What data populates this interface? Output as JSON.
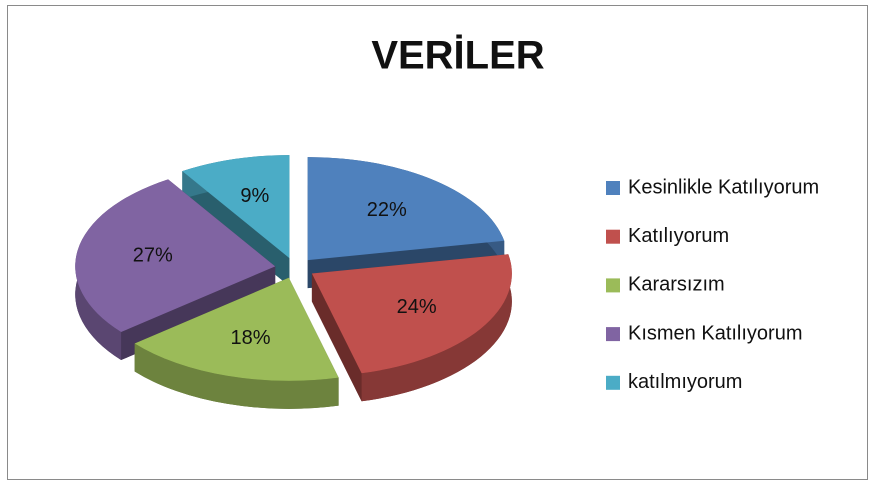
{
  "chart_data": {
    "type": "pie",
    "title": "VERİLER",
    "categories": [
      "Kesinlikle Katılıyorum",
      "Katılıyorum",
      "Kararsızım",
      "Kısmen Katılıyorum",
      "katılmıyorum"
    ],
    "values": [
      22,
      24,
      18,
      27,
      9
    ],
    "value_labels": [
      "22%",
      "24%",
      "18%",
      "27%",
      "9%"
    ],
    "colors": [
      "#4f81bd",
      "#c0504d",
      "#9bbb59",
      "#8064a2",
      "#4bacc6"
    ],
    "legend": "right"
  }
}
